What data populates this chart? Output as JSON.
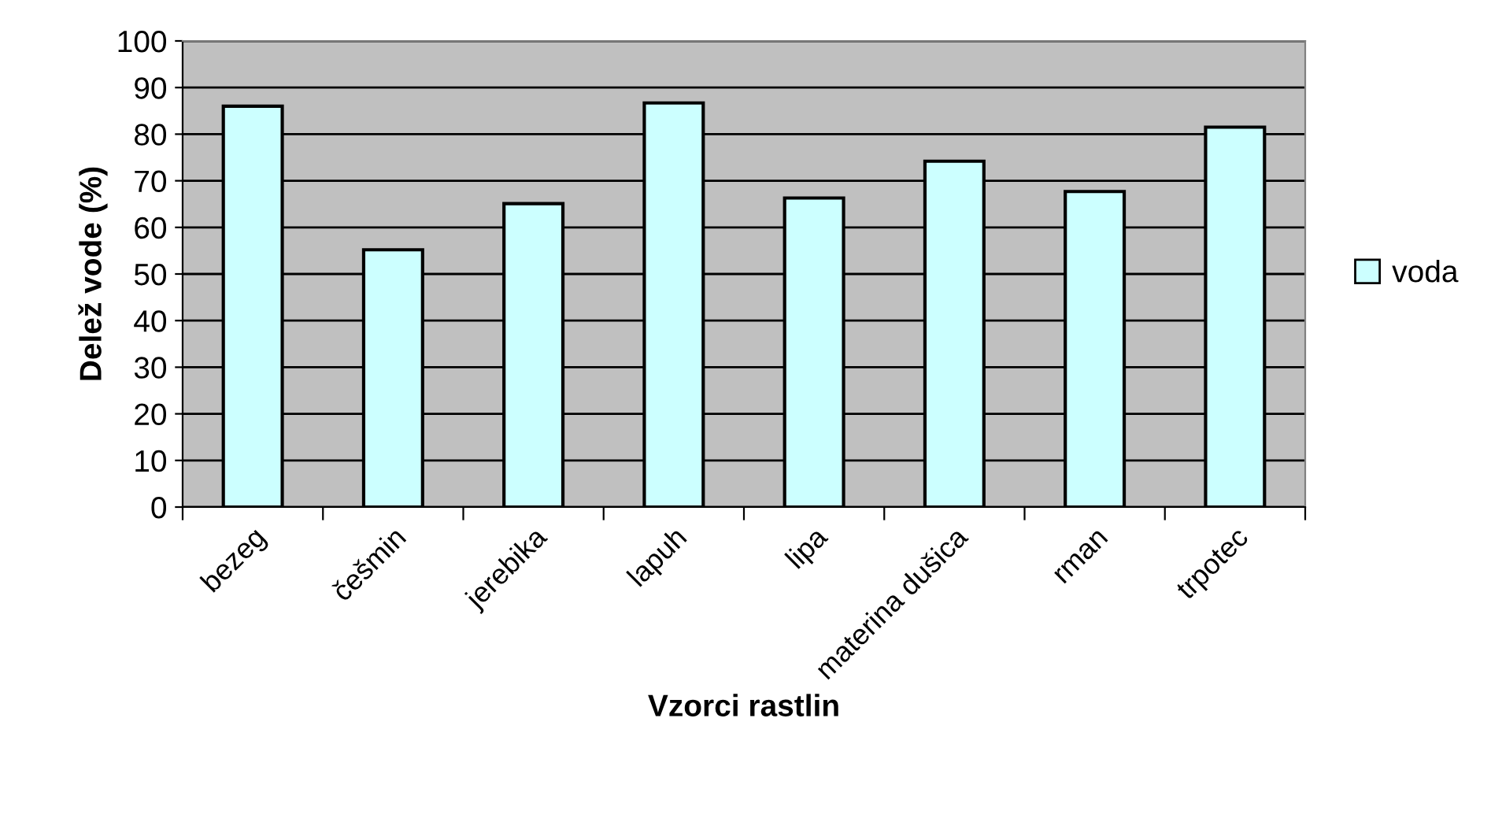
{
  "chart_data": {
    "type": "bar",
    "xlabel": "Vzorci rastlin",
    "ylabel": "Delež vode (%)",
    "categories": [
      "bezeg",
      "češmin",
      "jerebika",
      "lapuh",
      "lipa",
      "materina dušica",
      "rman",
      "trpotec"
    ],
    "series": [
      {
        "name": "voda",
        "color": "#ccffff",
        "values": [
          86,
          55.2,
          65.1,
          86.7,
          66.3,
          74.2,
          67.7,
          81.5
        ]
      }
    ],
    "ylim": [
      0,
      100
    ],
    "yticks": [
      0,
      10,
      20,
      30,
      40,
      50,
      60,
      70,
      80,
      90,
      100
    ],
    "grid": "y",
    "legend": "right"
  }
}
